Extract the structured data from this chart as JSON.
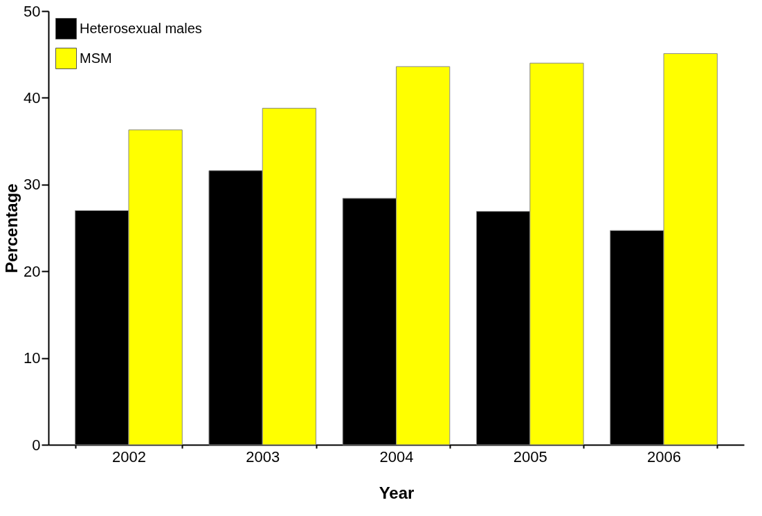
{
  "chart_data": {
    "type": "bar",
    "xlabel": "Year",
    "ylabel": "Percentage",
    "categories": [
      "2002",
      "2003",
      "2004",
      "2005",
      "2006"
    ],
    "series": [
      {
        "name": "Heterosexual males",
        "color": "#000000",
        "values": [
          27.0,
          31.6,
          28.4,
          26.9,
          24.7
        ]
      },
      {
        "name": "MSM",
        "color": "#ffff00",
        "values": [
          36.3,
          38.8,
          43.6,
          44.0,
          45.1
        ]
      }
    ],
    "ylim": [
      0,
      50
    ],
    "yticks": [
      0,
      10,
      20,
      30,
      40,
      50
    ],
    "grid": false,
    "legend": "top left"
  }
}
